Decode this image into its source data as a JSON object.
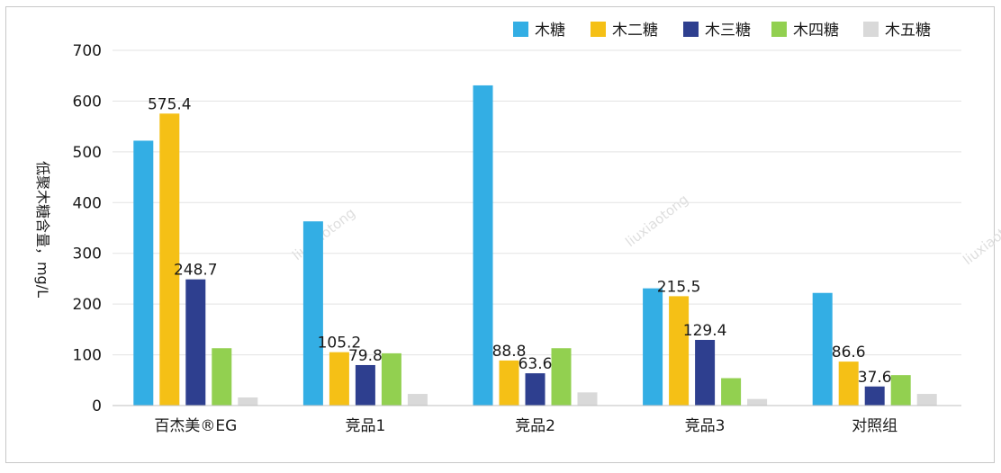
{
  "chart_data": {
    "type": "bar",
    "title": "",
    "xlabel": "",
    "ylabel": "低聚木糖含量，mg/L",
    "ylim": [
      0,
      700
    ],
    "yticks": [
      0,
      100,
      200,
      300,
      400,
      500,
      600,
      700
    ],
    "grid": true,
    "legend_position": "top-right",
    "categories": [
      "百杰美®EG",
      "竞品1",
      "竞品2",
      "竞品3",
      "对照组"
    ],
    "series": [
      {
        "name": "木糖",
        "color": "#33aee4",
        "values": [
          522,
          363,
          631,
          231,
          222
        ],
        "labels": [
          "",
          "",
          "",
          "",
          ""
        ]
      },
      {
        "name": "木二糖",
        "color": "#f5c016",
        "values": [
          575.4,
          105.2,
          88.8,
          215.5,
          86.6
        ],
        "labels": [
          "575.4",
          "105.2",
          "88.8",
          "215.5",
          "86.6"
        ]
      },
      {
        "name": "木三糖",
        "color": "#2e3f8f",
        "values": [
          248.7,
          79.8,
          63.6,
          129.4,
          37.6
        ],
        "labels": [
          "248.7",
          "79.8",
          "63.6",
          "129.4",
          "37.6"
        ]
      },
      {
        "name": "木四糖",
        "color": "#92d050",
        "values": [
          113,
          103,
          113,
          54,
          60
        ],
        "labels": [
          "",
          "",
          "",
          "",
          ""
        ]
      },
      {
        "name": "木五糖",
        "color": "#d9d9d9",
        "values": [
          16,
          23,
          26,
          13,
          23
        ],
        "labels": [
          "",
          "",
          "",
          "",
          ""
        ]
      }
    ]
  },
  "watermark": "liuxiaotong"
}
